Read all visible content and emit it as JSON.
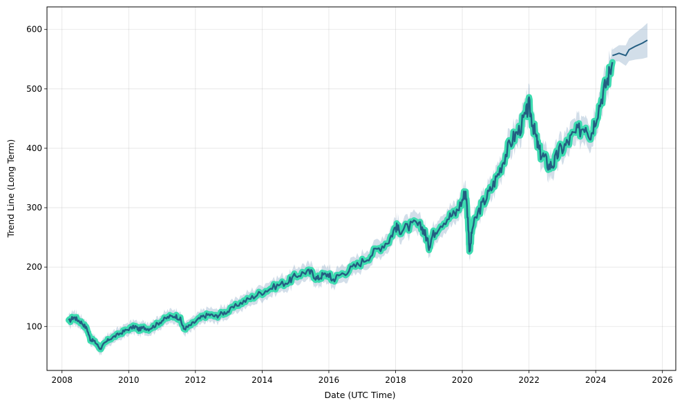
{
  "chart_data": {
    "type": "line",
    "title": "",
    "xlabel": "Date (UTC Time)",
    "ylabel": "Trend Line (Long Term)",
    "xlim": [
      2007.55,
      2026.4
    ],
    "ylim": [
      26,
      638
    ],
    "grid": true,
    "x_ticks": [
      "2008",
      "2010",
      "2012",
      "2014",
      "2016",
      "2018",
      "2020",
      "2022",
      "2024",
      "2026"
    ],
    "y_ticks": [
      "100",
      "200",
      "300",
      "400",
      "500",
      "600"
    ],
    "colors": {
      "history_band": "#3ddcb0",
      "trend_line": "#245e82",
      "confidence_band": "#8aa8c6"
    },
    "series": [
      {
        "role": "history",
        "x": [
          2008.2,
          2008.35,
          2008.45,
          2008.6,
          2008.75,
          2008.85,
          2008.95,
          2009.05,
          2009.15,
          2009.25,
          2009.4,
          2009.6,
          2009.8,
          2010.0,
          2010.2,
          2010.3,
          2010.45,
          2010.6,
          2010.8,
          2011.0,
          2011.2,
          2011.4,
          2011.55,
          2011.65,
          2011.8,
          2012.0,
          2012.2,
          2012.4,
          2012.6,
          2012.8,
          2013.0,
          2013.3,
          2013.6,
          2013.9,
          2014.2,
          2014.5,
          2014.8,
          2015.0,
          2015.3,
          2015.5,
          2015.65,
          2015.8,
          2016.0,
          2016.1,
          2016.3,
          2016.6,
          2016.9,
          2017.2,
          2017.5,
          2017.8,
          2018.0,
          2018.1,
          2018.3,
          2018.6,
          2018.8,
          2018.9,
          2019.0,
          2019.1,
          2019.3,
          2019.6,
          2019.8,
          2020.0,
          2020.1,
          2020.18,
          2020.22,
          2020.3,
          2020.5,
          2020.7,
          2020.9,
          2021.1,
          2021.3,
          2021.5,
          2021.7,
          2021.9,
          2022.0,
          2022.1,
          2022.2,
          2022.3,
          2022.45,
          2022.6,
          2022.75,
          2022.9,
          2023.1,
          2023.3,
          2023.5,
          2023.7,
          2023.85,
          2024.0,
          2024.2,
          2024.35,
          2024.5
        ],
        "y": [
          108,
          116,
          112,
          106,
          96,
          78,
          76,
          70,
          62,
          70,
          78,
          84,
          90,
          96,
          100,
          95,
          98,
          96,
          102,
          110,
          116,
          118,
          112,
          96,
          100,
          108,
          116,
          120,
          117,
          122,
          126,
          138,
          146,
          155,
          163,
          170,
          176,
          185,
          192,
          190,
          180,
          186,
          188,
          178,
          186,
          195,
          205,
          218,
          232,
          245,
          268,
          262,
          266,
          272,
          266,
          254,
          235,
          252,
          270,
          285,
          290,
          312,
          330,
          270,
          222,
          265,
          295,
          315,
          335,
          360,
          390,
          415,
          430,
          455,
          472,
          445,
          420,
          395,
          385,
          370,
          375,
          395,
          405,
          420,
          430,
          440,
          422,
          452,
          490,
          515,
          545
        ]
      },
      {
        "role": "forecast",
        "x": [
          2024.5,
          2024.7,
          2024.9,
          2025.0,
          2025.2,
          2025.4,
          2025.55
        ],
        "y": [
          556,
          560,
          556,
          566,
          572,
          577,
          582
        ]
      }
    ]
  }
}
